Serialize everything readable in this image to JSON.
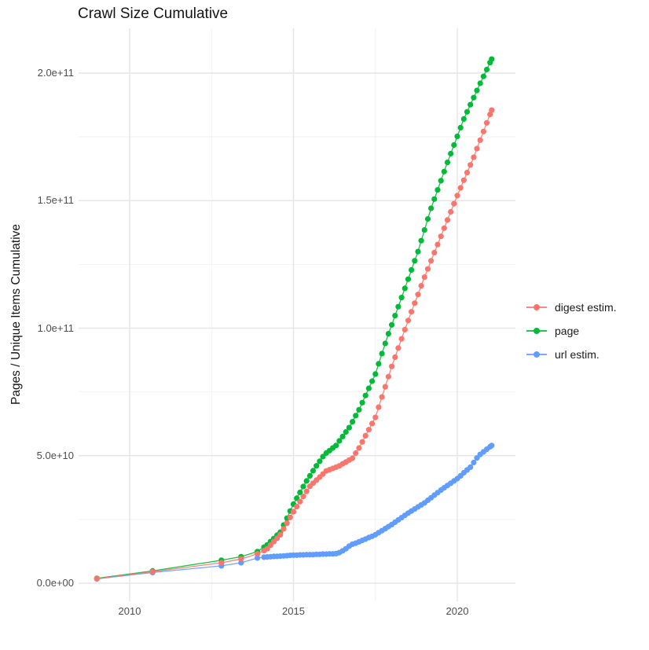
{
  "title": "Crawl Size Cumulative",
  "y_axis_title": "Pages / Unique Items Cumulative",
  "chart_data": {
    "type": "scatter",
    "title": "Crawl Size Cumulative",
    "xlabel": "",
    "ylabel": "Pages / Unique Items Cumulative",
    "legend_position": "right",
    "grid": "on",
    "xlim": [
      2008.4,
      2021.8
    ],
    "ylim": [
      0,
      218000000000.0
    ],
    "x_ticks": [
      {
        "value": 2010,
        "label": "2010"
      },
      {
        "value": 2015,
        "label": "2015"
      },
      {
        "value": 2020,
        "label": "2020"
      }
    ],
    "x_minor_ticks": [
      2012.5,
      2017.5
    ],
    "y_ticks": [
      {
        "value": 0,
        "label": "0.0e+00"
      },
      {
        "value": 50,
        "label": "5.0e+10"
      },
      {
        "value": 100,
        "label": "1.0e+11"
      },
      {
        "value": 150,
        "label": "1.5e+11"
      },
      {
        "value": 200,
        "label": "2.0e+11"
      }
    ],
    "y_minor_ticks": [
      25,
      75,
      125,
      175
    ],
    "value_unit": "billions of pages / unique items (1e9)",
    "x": [
      2009,
      2010.7,
      2012.8,
      2013.4,
      2013.9,
      2014.1,
      2014.2,
      2014.3,
      2014.4,
      2014.5,
      2014.6,
      2014.7,
      2014.8,
      2014.9,
      2015,
      2015.1,
      2015.2,
      2015.3,
      2015.4,
      2015.5,
      2015.6,
      2015.7,
      2015.8,
      2015.9,
      2016,
      2016.1,
      2016.2,
      2016.3,
      2016.4,
      2016.5,
      2016.6,
      2016.7,
      2016.8,
      2016.9,
      2017,
      2017.1,
      2017.2,
      2017.3,
      2017.4,
      2017.5,
      2017.6,
      2017.7,
      2017.8,
      2017.9,
      2018,
      2018.1,
      2018.2,
      2018.3,
      2018.4,
      2018.5,
      2018.6,
      2018.7,
      2018.8,
      2018.9,
      2019,
      2019.1,
      2019.2,
      2019.3,
      2019.4,
      2019.5,
      2019.6,
      2019.7,
      2019.8,
      2019.9,
      2020,
      2020.1,
      2020.2,
      2020.3,
      2020.4,
      2020.5,
      2020.6,
      2020.7,
      2020.8,
      2020.9,
      2021,
      2021.05
    ],
    "series": [
      {
        "name": "digest estim.",
        "color": "#F8766D",
        "values": [
          1.8,
          4.5,
          8.0,
          9.5,
          11.5,
          12.8,
          13.5,
          14.9,
          16.3,
          17.6,
          19,
          21.3,
          23.5,
          25.8,
          28,
          30,
          32,
          34,
          36,
          38,
          39.2,
          40.4,
          41.6,
          42.8,
          44,
          44.5,
          45,
          45.5,
          46,
          46.8,
          47.5,
          48.3,
          49,
          51,
          53,
          55.4,
          57.8,
          60.2,
          62.6,
          65,
          69,
          73,
          77,
          81,
          85,
          88.6,
          92.2,
          95.8,
          99.4,
          103,
          106.4,
          109.8,
          113.2,
          116.6,
          120,
          123.2,
          126.4,
          129.6,
          132.8,
          136,
          139.2,
          142.4,
          145.6,
          148.8,
          152,
          155,
          158,
          161,
          164,
          167,
          170.4,
          173.7,
          177.1,
          180.5,
          183.8,
          185.5
        ]
      },
      {
        "name": "page",
        "color": "#00BA38",
        "values": [
          1.9,
          4.8,
          9.0,
          10.4,
          12.4,
          14.1,
          15.0,
          16.3,
          17.5,
          18.8,
          20,
          22.8,
          25.5,
          28.3,
          31,
          33.3,
          35.6,
          37.9,
          40.1,
          42.1,
          44.1,
          46,
          47.8,
          49.6,
          51,
          52,
          53,
          54,
          55.8,
          57.5,
          59.3,
          61,
          63.3,
          65.7,
          68,
          70.8,
          73.6,
          76.4,
          79.2,
          82,
          86,
          90,
          94,
          97.8,
          101.3,
          104.9,
          108.4,
          112,
          115.6,
          119.2,
          122.8,
          126.4,
          130,
          134.3,
          138.5,
          142.8,
          147,
          150.6,
          154.2,
          157.8,
          161.4,
          165,
          168.4,
          171.8,
          175.2,
          178.6,
          182,
          184.8,
          187.6,
          190.4,
          193.2,
          196,
          198.7,
          201.4,
          204.1,
          205.5
        ]
      },
      {
        "name": "url estim.",
        "color": "#619CFF",
        "values": [
          1.7,
          4.2,
          6.8,
          8.0,
          9.9,
          10.2,
          10.3,
          10.4,
          10.5,
          10.55,
          10.6,
          10.7,
          10.8,
          10.9,
          11.0,
          11.0,
          11.1,
          11.1,
          11.2,
          11.2,
          11.2,
          11.3,
          11.3,
          11.4,
          11.4,
          11.5,
          11.5,
          11.6,
          12.0,
          12.7,
          13.5,
          14.5,
          15.3,
          15.7,
          16.2,
          16.8,
          17.3,
          17.9,
          18.4,
          19.0,
          19.8,
          20.6,
          21.4,
          22.2,
          23.0,
          23.9,
          24.8,
          25.7,
          26.6,
          27.5,
          28.3,
          29.1,
          29.9,
          30.7,
          31.5,
          32.5,
          33.5,
          34.5,
          35.5,
          36.5,
          37.4,
          38.3,
          39.2,
          40.1,
          41.0,
          42.1,
          43.3,
          44.4,
          45.5,
          47.3,
          49.1,
          50.5,
          51.5,
          52.5,
          53.5,
          54.0
        ]
      }
    ]
  },
  "colors": {
    "grid_major": "#e6e6e6",
    "grid_minor": "#f2f2f2",
    "tick_text": "#4d4d4d",
    "title_text": "#141414"
  }
}
